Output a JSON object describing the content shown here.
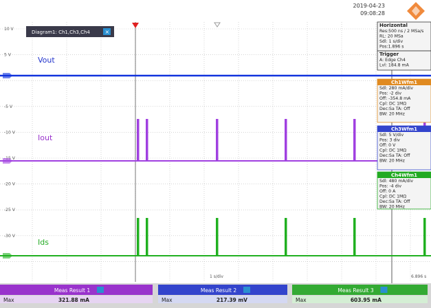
{
  "header": {
    "date": "2019-04-23",
    "time": "09:08:28"
  },
  "diagram": {
    "tab": "Diagram1: Ch1,Ch3,Ch4",
    "y_labels": [
      "10 V",
      "5 V",
      "-5 V",
      "-10 V",
      "-15 V",
      "-20 V",
      "-25 V",
      "-30 V",
      "-40 V"
    ],
    "traces": [
      "Vout",
      "Iout",
      "Ids"
    ],
    "timebase": "1 s/div",
    "time_end": "6.896 s"
  },
  "panels": [
    {
      "title": "Horizontal",
      "lines": [
        "Res:500 ns / 2 MSa/s",
        "RL: 20 MSa",
        "Sdl: 1 s/div",
        "Pos:1.896 s"
      ]
    },
    {
      "title": "Trigger",
      "lines": [
        "A:  Edge  Ch4",
        "Lvl: 184.8 mA"
      ]
    },
    {
      "title": "Ch1Wfm1",
      "lines": [
        "Sdl: 280 mA/div",
        "Pos: -2 div",
        "Off: -354.8 mA",
        "Cpl: DC 1MΩ",
        "Dec:Sa     TA: Off",
        "BW: 20 MHz"
      ]
    },
    {
      "title": "Ch3Wfm1",
      "lines": [
        "Sdl: 5 V/div",
        "Pos: 3 div",
        "Off: 0 V",
        "Cpl: DC 1MΩ",
        "Dec:Sa     TA: Off",
        "BW: 20 MHz"
      ]
    },
    {
      "title": "Ch4Wfm1",
      "lines": [
        "Sdl: 480 mA/div",
        "Pos: -4 div",
        "Off: 0 A",
        "Cpl: DC 1MΩ",
        "Dec:Sa     TA: Off",
        "BW: 20 MHz"
      ]
    }
  ],
  "measurements": [
    {
      "title": "Meas Result 1",
      "label": "Max",
      "value": "321.88 mA"
    },
    {
      "title": "Meas Result 2",
      "label": "Max",
      "value": "217.39 mV"
    },
    {
      "title": "Meas Result 3",
      "label": "Max",
      "value": "603.95 mA"
    }
  ]
}
